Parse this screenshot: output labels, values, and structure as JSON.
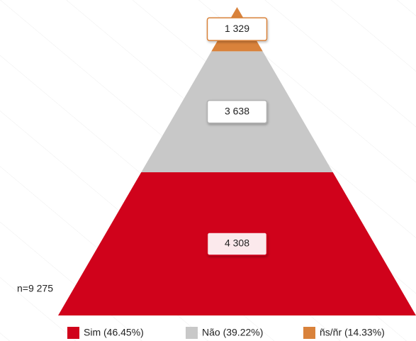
{
  "chart_data": {
    "type": "pyramid",
    "annotation": "n=9 275",
    "series": [
      {
        "name": "Sim (46.45%)",
        "color": "#d0021b",
        "values": [
          4308
        ],
        "value_labels": [
          "4 308"
        ]
      },
      {
        "name": "Não (39.22%)",
        "color": "#c8c8c8",
        "values": [
          3638
        ],
        "value_labels": [
          "3 638"
        ]
      },
      {
        "name": "ñs/ñr (14.33%)",
        "color": "#d9823b",
        "values": [
          1329
        ],
        "value_labels": [
          "1 329"
        ]
      }
    ]
  }
}
